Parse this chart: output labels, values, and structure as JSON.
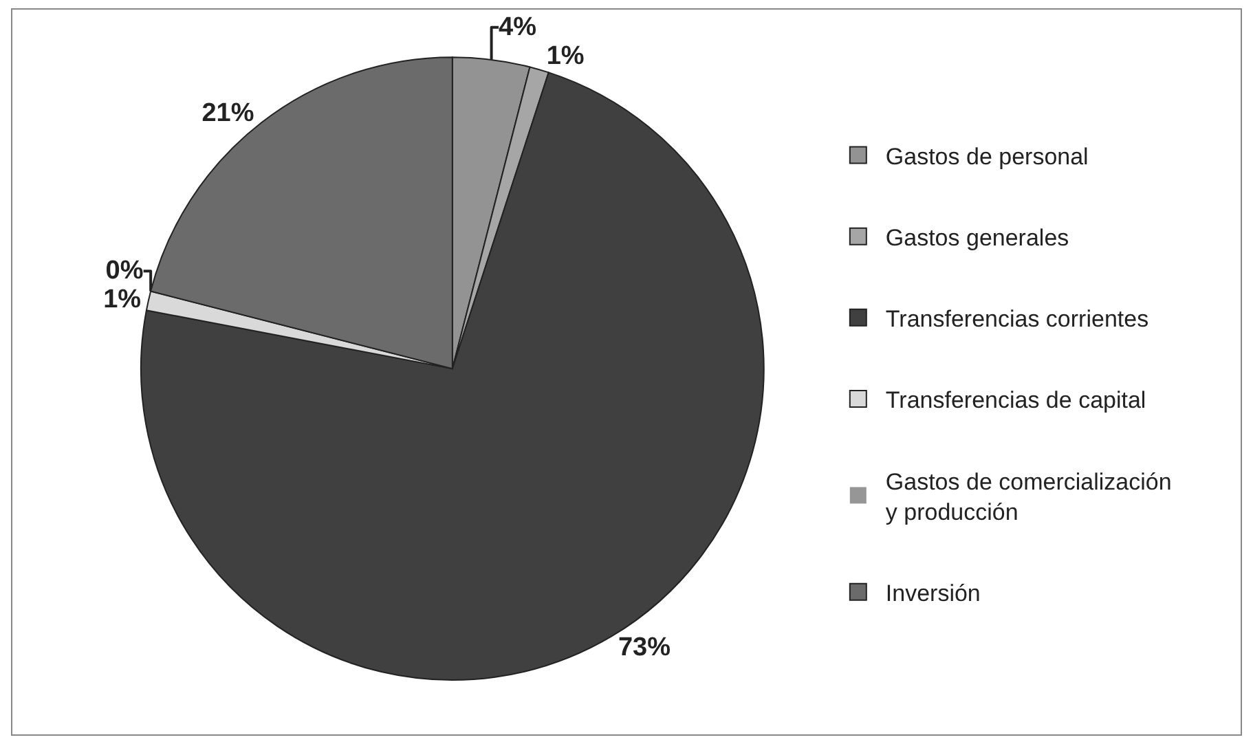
{
  "chart_data": {
    "type": "pie",
    "categories": [
      "Gastos de personal",
      "Gastos generales",
      "Transferencias corrientes",
      "Transferencias de capital",
      "Gastos de comercialización\ny producción",
      "Inversión"
    ],
    "values": [
      4,
      1,
      73,
      1,
      0,
      21
    ],
    "value_labels": [
      "4%",
      "1%",
      "73%",
      "1%",
      "0%",
      "21%"
    ],
    "colors": [
      "#939393",
      "#a6a6a6",
      "#404040",
      "#d9d9d9",
      "#969696",
      "#6b6b6b"
    ],
    "legend": "right"
  }
}
